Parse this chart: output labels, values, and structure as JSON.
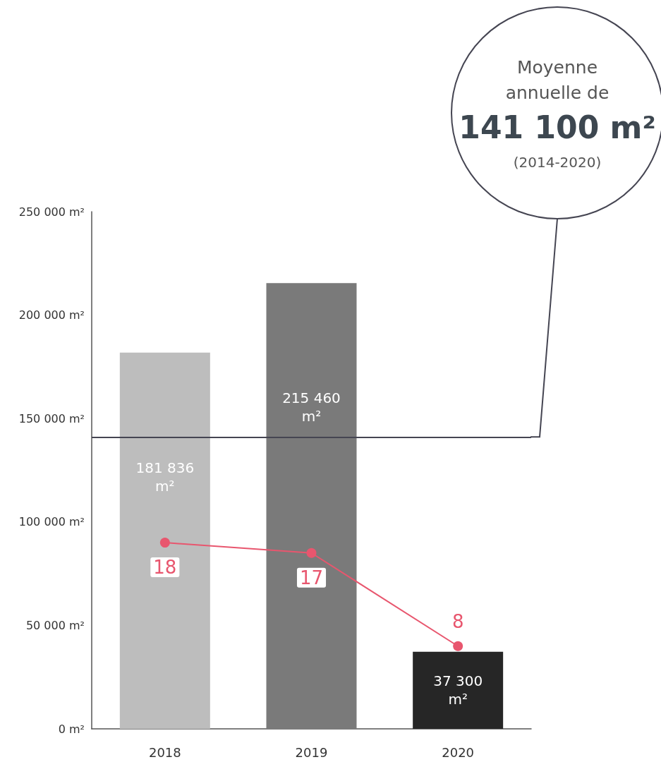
{
  "chart_data": {
    "type": "bar",
    "categories": [
      "2018",
      "2019",
      "2020"
    ],
    "series": [
      {
        "colors": [
          "#bdbdbd",
          "#7a7a7a",
          "#262626"
        ],
        "values": [
          181836,
          215460,
          37300
        ],
        "value_labels": [
          "181 836\nm²",
          "215 460\nm²",
          "37 300\nm²"
        ]
      },
      {
        "type": "line",
        "axis": "y2",
        "color": "#e8566e",
        "values": [
          18,
          17,
          8
        ],
        "value_labels": [
          "18",
          "17",
          "8"
        ],
        "marker": "circle"
      }
    ],
    "ylim": [
      0,
      250000
    ],
    "yticks": [
      {
        "value": 0,
        "label": "0 m²"
      },
      {
        "value": 50000,
        "label": "50 000 m²"
      },
      {
        "value": 100000,
        "label": "100 000 m²"
      },
      {
        "value": 150000,
        "label": "150 000 m²"
      },
      {
        "value": 200000,
        "label": "200 000 m²"
      },
      {
        "value": 250000,
        "label": "250 000 m²"
      }
    ],
    "y2lim": [
      0,
      50
    ],
    "ref_lines": [
      {
        "axis": "y",
        "value": 141100,
        "label": "Moyenne\nannuelle de\n141 100 m²\n(2014-2020)",
        "color": "#454552"
      }
    ],
    "grid": false
  }
}
